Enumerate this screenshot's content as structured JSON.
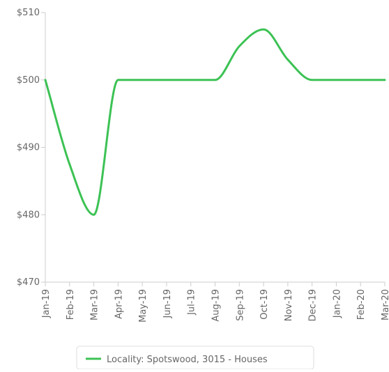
{
  "chart_data": {
    "type": "line",
    "categories": [
      "Jan-19",
      "Feb-19",
      "Mar-19",
      "Apr-19",
      "May-19",
      "Jun-19",
      "Jul-19",
      "Aug-19",
      "Sep-19",
      "Oct-19",
      "Nov-19",
      "Dec-19",
      "Jan-20",
      "Feb-20",
      "Mar-20"
    ],
    "series": [
      {
        "name": "Locality: Spotswood, 3015 - Houses",
        "color": "#3cc254",
        "values": [
          500,
          487.5,
          480,
          500,
          500,
          500,
          500,
          500,
          505,
          507.5,
          503,
          500,
          500,
          500,
          500
        ]
      }
    ],
    "ylim": [
      470,
      510
    ],
    "yticks": [
      {
        "value": 470,
        "label": "$470"
      },
      {
        "value": 480,
        "label": "$480"
      },
      {
        "value": 490,
        "label": "$490"
      },
      {
        "value": 500,
        "label": "$500"
      },
      {
        "value": 510,
        "label": "$510"
      }
    ],
    "grid": false,
    "legend": "bottom"
  }
}
